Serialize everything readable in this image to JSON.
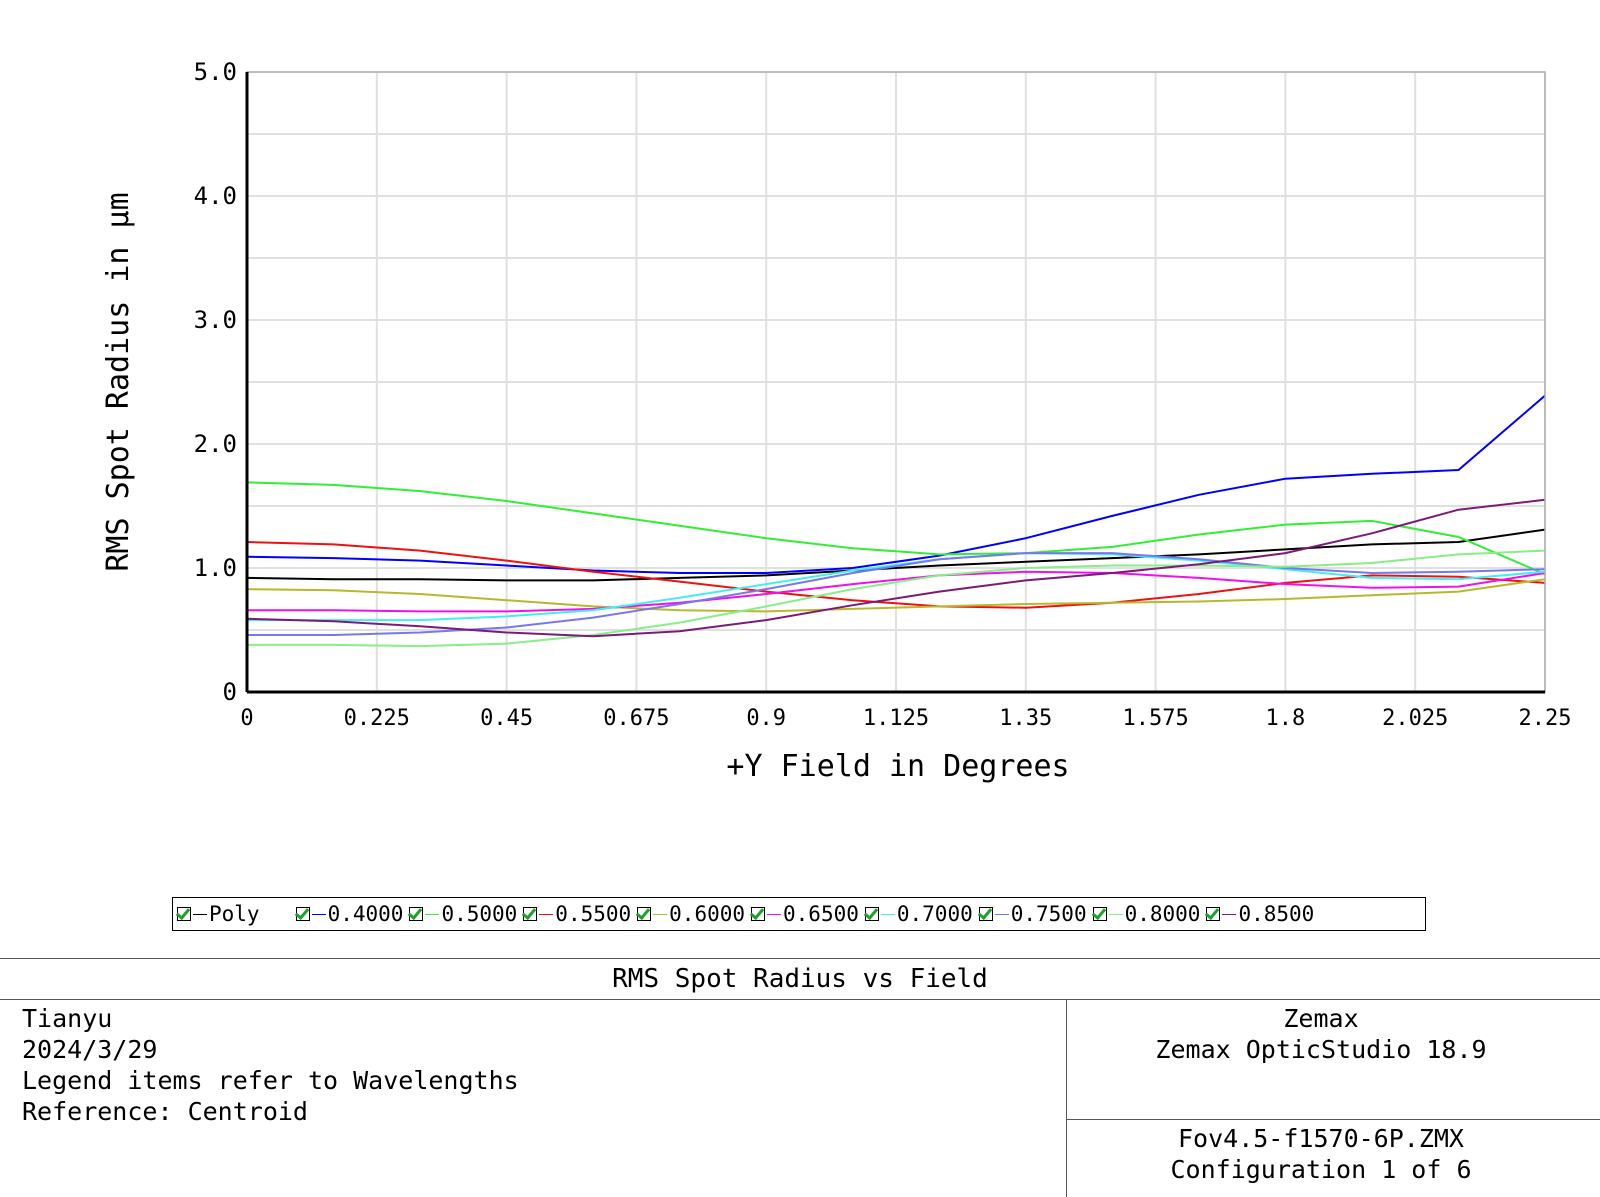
{
  "chart_data": {
    "type": "line",
    "title": "RMS Spot Radius vs Field",
    "xlabel": "+Y Field in Degrees",
    "ylabel": "RMS Spot Radius in µm",
    "xlim": [
      0,
      2.25
    ],
    "ylim": [
      0,
      5.0
    ],
    "x_ticks": [
      "0",
      "0.225",
      "0.45",
      "0.675",
      "0.9",
      "1.125",
      "1.35",
      "1.575",
      "1.8",
      "2.025",
      "2.25"
    ],
    "y_ticks": [
      "0",
      "1.0",
      "2.0",
      "3.0",
      "4.0",
      "5.0"
    ],
    "grid": true,
    "x": [
      0,
      0.15,
      0.3,
      0.45,
      0.6,
      0.75,
      0.9,
      1.05,
      1.2,
      1.35,
      1.5,
      1.65,
      1.8,
      1.95,
      2.1,
      2.25
    ],
    "series": [
      {
        "name": "Poly",
        "color": "#000000",
        "values": [
          0.92,
          0.91,
          0.91,
          0.9,
          0.9,
          0.92,
          0.94,
          0.98,
          1.02,
          1.05,
          1.08,
          1.11,
          1.15,
          1.19,
          1.21,
          1.31
        ]
      },
      {
        "name": "0.4000",
        "color": "#0000ff",
        "values": [
          1.09,
          1.08,
          1.06,
          1.02,
          0.98,
          0.96,
          0.96,
          1.0,
          1.1,
          1.24,
          1.42,
          1.59,
          1.72,
          1.76,
          1.79,
          2.39
        ]
      },
      {
        "name": "0.5000",
        "color": "#33ee33",
        "values": [
          1.69,
          1.67,
          1.62,
          1.54,
          1.44,
          1.34,
          1.24,
          1.16,
          1.11,
          1.12,
          1.17,
          1.27,
          1.35,
          1.38,
          1.25,
          0.95
        ]
      },
      {
        "name": "0.5500",
        "color": "#ee1111",
        "values": [
          1.21,
          1.19,
          1.14,
          1.06,
          0.97,
          0.89,
          0.81,
          0.74,
          0.69,
          0.68,
          0.72,
          0.79,
          0.88,
          0.94,
          0.93,
          0.88
        ]
      },
      {
        "name": "0.6000",
        "color": "#b8b82e",
        "values": [
          0.83,
          0.82,
          0.79,
          0.74,
          0.69,
          0.66,
          0.65,
          0.67,
          0.69,
          0.71,
          0.72,
          0.73,
          0.75,
          0.78,
          0.81,
          0.91
        ]
      },
      {
        "name": "0.6500",
        "color": "#ee11ee",
        "values": [
          0.66,
          0.66,
          0.65,
          0.65,
          0.67,
          0.72,
          0.79,
          0.87,
          0.94,
          0.97,
          0.96,
          0.92,
          0.87,
          0.84,
          0.85,
          0.96
        ]
      },
      {
        "name": "0.7000",
        "color": "#44eeee",
        "values": [
          0.58,
          0.58,
          0.58,
          0.61,
          0.66,
          0.76,
          0.87,
          0.98,
          1.07,
          1.12,
          1.11,
          1.06,
          0.99,
          0.92,
          0.91,
          0.97
        ]
      },
      {
        "name": "0.7500",
        "color": "#7777ee",
        "values": [
          0.46,
          0.46,
          0.48,
          0.52,
          0.6,
          0.71,
          0.83,
          0.96,
          1.07,
          1.12,
          1.12,
          1.07,
          1.0,
          0.96,
          0.97,
          0.99
        ]
      },
      {
        "name": "0.8000",
        "color": "#88ee88",
        "values": [
          0.38,
          0.38,
          0.37,
          0.39,
          0.46,
          0.56,
          0.69,
          0.83,
          0.94,
          1.0,
          1.02,
          1.02,
          1.01,
          1.04,
          1.11,
          1.14
        ]
      },
      {
        "name": "0.8500",
        "color": "#7a1b7a",
        "values": [
          0.59,
          0.57,
          0.53,
          0.48,
          0.45,
          0.49,
          0.58,
          0.7,
          0.81,
          0.9,
          0.96,
          1.03,
          1.12,
          1.28,
          1.47,
          1.55
        ]
      }
    ]
  },
  "legend": {
    "items": [
      {
        "label": "Poly",
        "color": "#000000"
      },
      {
        "label": "0.4000",
        "color": "#0000ff"
      },
      {
        "label": "0.5000",
        "color": "#33ee33"
      },
      {
        "label": "0.5500",
        "color": "#ee1111"
      },
      {
        "label": "0.6000",
        "color": "#b8b82e"
      },
      {
        "label": "0.6500",
        "color": "#ee11ee"
      },
      {
        "label": "0.7000",
        "color": "#44eeee"
      },
      {
        "label": "0.7500",
        "color": "#7777ee"
      },
      {
        "label": "0.8000",
        "color": "#88ee88"
      },
      {
        "label": "0.8500",
        "color": "#7a1b7a"
      }
    ]
  },
  "footer": {
    "title": "RMS Spot Radius vs Field",
    "left_lines": [
      "Tianyu",
      "2024/3/29",
      "Legend items refer to Wavelengths",
      "Reference: Centroid"
    ],
    "right_top_lines": [
      "Zemax",
      "Zemax OpticStudio 18.9"
    ],
    "right_bottom_lines": [
      "Fov4.5-f1570-6P.ZMX",
      "Configuration 1 of 6"
    ]
  }
}
